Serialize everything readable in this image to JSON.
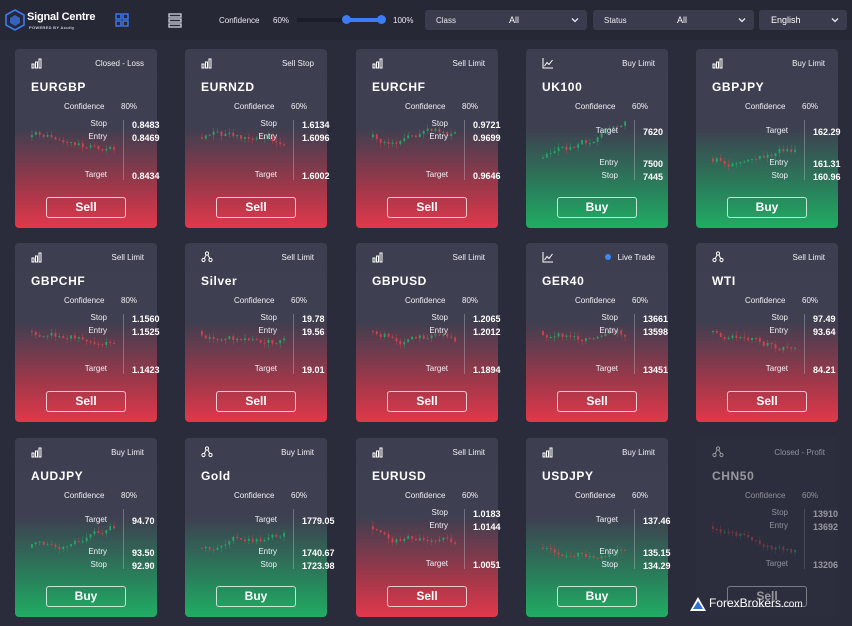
{
  "app": {
    "title": "Signal Centre",
    "subtitle": "POWERED BY Acuity"
  },
  "toolbar": {
    "grid_view_icon": "grid-icon",
    "list_view_icon": "list-icon",
    "confidence_label": "Confidence",
    "confidence_min": "60%",
    "confidence_max": "100%",
    "confidence_range": [
      60,
      100
    ],
    "class_label": "Class",
    "class_value": "All",
    "status_label": "Status",
    "status_value": "All",
    "language_value": "English"
  },
  "colors": {
    "sell_red": "#e1384b",
    "buy_green": "#20ad63",
    "accent_blue": "#3d7bf7",
    "background": "#2a2c3b"
  },
  "labels": {
    "confidence": "Confidence",
    "stop": "Stop",
    "entry": "Entry",
    "target": "Target"
  },
  "cards": [
    {
      "symbol": "EURGBP",
      "chart_icon": "bars-icon",
      "order_type": "Closed - Loss",
      "confidence": "80%",
      "side": "Sell",
      "stop": "0.8483",
      "entry": "0.8469",
      "target": "0.8434"
    },
    {
      "symbol": "EURNZD",
      "chart_icon": "bars-icon",
      "order_type": "Sell Stop",
      "confidence": "60%",
      "side": "Sell",
      "stop": "1.6134",
      "entry": "1.6096",
      "target": "1.6002"
    },
    {
      "symbol": "EURCHF",
      "chart_icon": "bars-icon",
      "order_type": "Sell Limit",
      "confidence": "80%",
      "side": "Sell",
      "stop": "0.9721",
      "entry": "0.9699",
      "target": "0.9646"
    },
    {
      "symbol": "UK100",
      "chart_icon": "line-chart-icon",
      "order_type": "Buy Limit",
      "confidence": "60%",
      "side": "Buy",
      "stop": "7445",
      "entry": "7500",
      "target": "7620"
    },
    {
      "symbol": "GBPJPY",
      "chart_icon": "bars-icon",
      "order_type": "Buy Limit",
      "confidence": "60%",
      "side": "Buy",
      "stop": "160.96",
      "entry": "161.31",
      "target": "162.29"
    },
    {
      "symbol": "GBPCHF",
      "chart_icon": "bars-icon",
      "order_type": "Sell Limit",
      "confidence": "80%",
      "side": "Sell",
      "stop": "1.1560",
      "entry": "1.1525",
      "target": "1.1423"
    },
    {
      "symbol": "Silver",
      "chart_icon": "commodity-icon",
      "order_type": "Sell Limit",
      "confidence": "60%",
      "side": "Sell",
      "stop": "19.78",
      "entry": "19.56",
      "target": "19.01"
    },
    {
      "symbol": "GBPUSD",
      "chart_icon": "bars-icon",
      "order_type": "Sell Limit",
      "confidence": "80%",
      "side": "Sell",
      "stop": "1.2065",
      "entry": "1.2012",
      "target": "1.1894"
    },
    {
      "symbol": "GER40",
      "chart_icon": "line-chart-icon",
      "order_type": "Live Trade",
      "confidence": "60%",
      "side": "Sell",
      "stop": "13661",
      "entry": "13598",
      "target": "13451"
    },
    {
      "symbol": "WTI",
      "chart_icon": "commodity-icon",
      "order_type": "Sell Limit",
      "confidence": "60%",
      "side": "Sell",
      "stop": "97.49",
      "entry": "93.64",
      "target": "84.21"
    },
    {
      "symbol": "AUDJPY",
      "chart_icon": "bars-icon",
      "order_type": "Buy Limit",
      "confidence": "80%",
      "side": "Buy",
      "stop": "92.90",
      "entry": "93.50",
      "target": "94.70"
    },
    {
      "symbol": "Gold",
      "chart_icon": "commodity-icon",
      "order_type": "Buy Limit",
      "confidence": "60%",
      "side": "Buy",
      "stop": "1723.98",
      "entry": "1740.67",
      "target": "1779.05"
    },
    {
      "symbol": "EURUSD",
      "chart_icon": "bars-icon",
      "order_type": "Sell Limit",
      "confidence": "60%",
      "side": "Sell",
      "stop": "1.0183",
      "entry": "1.0144",
      "target": "1.0051"
    },
    {
      "symbol": "USDJPY",
      "chart_icon": "bars-icon",
      "order_type": "Buy Limit",
      "confidence": "60%",
      "side": "Buy",
      "stop": "134.29",
      "entry": "135.15",
      "target": "137.46"
    },
    {
      "symbol": "CHN50",
      "chart_icon": "commodity-icon",
      "order_type": "Closed - Profit",
      "confidence": "60%",
      "side": "Sell",
      "stop": "13910",
      "entry": "13692",
      "target": "13206"
    }
  ],
  "watermark": {
    "brand": "ForexBrokers",
    "tld": ".com"
  }
}
